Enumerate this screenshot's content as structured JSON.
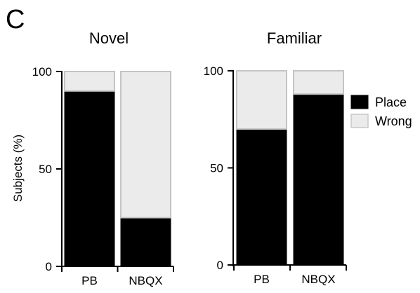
{
  "figure": {
    "panel_letter": "C",
    "legend": [
      {
        "label": "Place",
        "color": "#000000"
      },
      {
        "label": "Wrong",
        "color": "#ebebeb"
      }
    ],
    "ylabel": "Subjects (%)"
  },
  "chart_data": [
    {
      "type": "bar",
      "stacked": true,
      "title": "Novel",
      "categories": [
        "PB",
        "NBQX"
      ],
      "ylabel": "Subjects (%)",
      "ylim": [
        0,
        100
      ],
      "yticks": [
        0,
        50,
        100
      ],
      "series": [
        {
          "name": "Place",
          "values": [
            90,
            25
          ],
          "color": "#000000"
        },
        {
          "name": "Wrong",
          "values": [
            10,
            75
          ],
          "color": "#ebebeb"
        }
      ]
    },
    {
      "type": "bar",
      "stacked": true,
      "title": "Familiar",
      "categories": [
        "PB",
        "NBQX"
      ],
      "ylabel": "",
      "ylim": [
        0,
        100
      ],
      "yticks": [
        0,
        50,
        100
      ],
      "series": [
        {
          "name": "Place",
          "values": [
            70,
            88
          ],
          "color": "#000000"
        },
        {
          "name": "Wrong",
          "values": [
            30,
            12
          ],
          "color": "#ebebeb"
        }
      ]
    }
  ]
}
